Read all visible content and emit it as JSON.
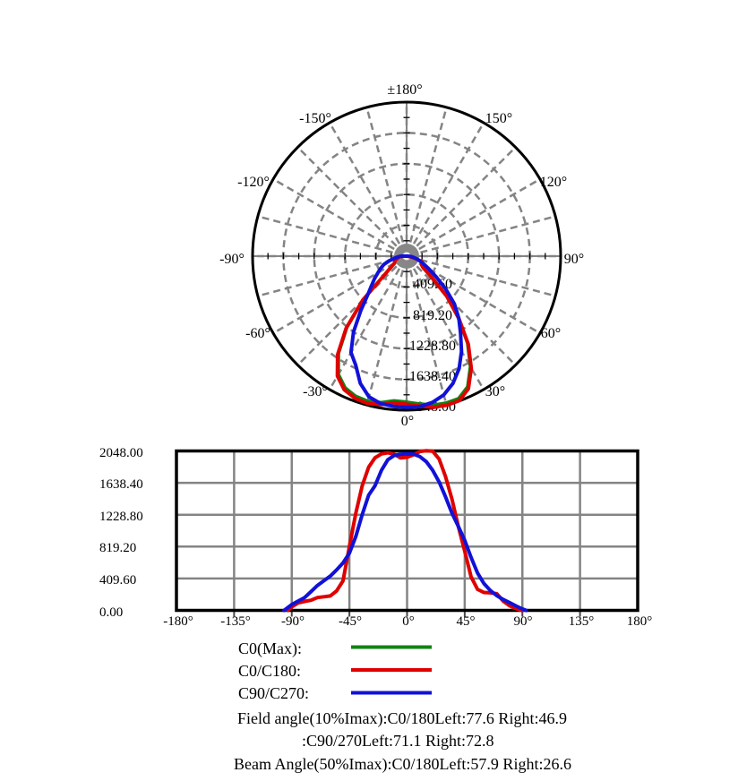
{
  "legend": {
    "items": [
      {
        "label": "C0(Max):",
        "color": "#128212"
      },
      {
        "label": "C0/C180:",
        "color": "#e00000"
      },
      {
        "label": "C90/C270:",
        "color": "#1111d8"
      }
    ]
  },
  "notes": {
    "field_angle_line1": "Field angle(10%Imax):C0/180Left:77.6 Right:46.9",
    "field_angle_line2": ":C90/270Left:71.1 Right:72.8",
    "beam_angle_line": "Beam Angle(50%Imax):C0/180Left:57.9 Right:26.6"
  },
  "chart_data": [
    {
      "type": "polar",
      "title": "",
      "rmax": 2048,
      "angle_range": [
        -180,
        180
      ],
      "grid": "dashed, rings every 409.6, spokes every 15 deg, 0 deg at bottom",
      "angle_tick_labels": [
        "±180°",
        "-150°",
        "150°",
        "-120°",
        "120°",
        "-90°",
        "90°",
        "-60°",
        "60°",
        "-30°",
        "30°",
        "0°"
      ],
      "r_tick_labels": [
        "409.60",
        "819.20",
        "1228.80",
        "1638.40",
        "2048.00"
      ],
      "series": [
        {
          "name": "C0(Max)",
          "color": "#128212",
          "angles": [
            -93,
            -90,
            -85,
            -80,
            -75,
            -70,
            -65,
            -60,
            -55,
            -50,
            -45,
            -40,
            -35,
            -30,
            -25,
            -20,
            -15,
            -10,
            -5,
            0,
            5,
            10,
            15,
            20,
            25,
            30,
            35,
            40,
            45,
            50,
            55,
            60,
            65,
            70,
            75,
            80,
            85,
            88,
            90
          ],
          "values": [
            0,
            44,
            94,
            113,
            128,
            163,
            172,
            182,
            246,
            374,
            808,
            1231,
            1576,
            1812,
            1931,
            1980,
            1995,
            1975,
            1929,
            1938,
            1970,
            2009,
            2021,
            2014,
            1916,
            1694,
            1409,
            1064,
            749,
            424,
            266,
            227,
            222,
            212,
            118,
            59,
            22,
            6,
            0
          ]
        },
        {
          "name": "C0/C180",
          "color": "#e00000",
          "angles": [
            -93,
            -90,
            -85,
            -80,
            -75,
            -70,
            -65,
            -60,
            -55,
            -50,
            -45,
            -40,
            -35,
            -30,
            -25,
            -20,
            -15,
            -10,
            -5,
            0,
            5,
            10,
            15,
            20,
            25,
            30,
            35,
            40,
            45,
            50,
            55,
            60,
            65,
            70,
            75,
            80,
            85,
            88,
            90
          ],
          "values": [
            0,
            45,
            95,
            115,
            130,
            165,
            175,
            185,
            250,
            380,
            820,
            1250,
            1600,
            1840,
            1960,
            2010,
            2025,
            2005,
            1958,
            1968,
            2000,
            2040,
            2052,
            2045,
            1945,
            1720,
            1430,
            1080,
            760,
            430,
            270,
            230,
            225,
            215,
            120,
            60,
            22,
            6,
            0
          ]
        },
        {
          "name": "C90/C270",
          "color": "#1111d8",
          "angles": [
            -96,
            -90,
            -85,
            -80,
            -75,
            -70,
            -65,
            -60,
            -55,
            -50,
            -45,
            -40,
            -35,
            -30,
            -25,
            -20,
            -15,
            -10,
            -5,
            0,
            5,
            10,
            15,
            20,
            25,
            30,
            35,
            40,
            45,
            50,
            55,
            60,
            65,
            70,
            75,
            80,
            85,
            90,
            93
          ],
          "values": [
            0,
            75,
            120,
            165,
            240,
            320,
            380,
            440,
            520,
            610,
            735,
            950,
            1230,
            1480,
            1600,
            1800,
            1935,
            1990,
            2005,
            2010,
            2008,
            1975,
            1910,
            1800,
            1650,
            1460,
            1250,
            1080,
            900,
            680,
            480,
            345,
            255,
            190,
            140,
            100,
            58,
            18,
            0
          ]
        }
      ]
    },
    {
      "type": "line",
      "title": "",
      "xlim": [
        -180,
        180
      ],
      "ylim": [
        0,
        2048
      ],
      "grid": "solid gray, x every 45 deg, y every 409.6",
      "x_tick_labels": [
        "-180°",
        "-135°",
        "-90°",
        "-45°",
        "0°",
        "45°",
        "90°",
        "135°",
        "180°"
      ],
      "y_tick_labels": [
        "0.00",
        "409.60",
        "819.20",
        "1228.80",
        "1638.40",
        "2048.00"
      ],
      "series": [
        {
          "name": "C0(Max)",
          "color": "#128212",
          "x": [
            -93,
            -90,
            -85,
            -80,
            -75,
            -70,
            -65,
            -60,
            -55,
            -50,
            -45,
            -40,
            -35,
            -30,
            -25,
            -20,
            -15,
            -10,
            -5,
            0,
            5,
            10,
            15,
            20,
            25,
            30,
            35,
            40,
            45,
            50,
            55,
            60,
            65,
            70,
            75,
            80,
            85,
            88,
            90
          ],
          "y": [
            0,
            45,
            95,
            115,
            130,
            165,
            175,
            185,
            250,
            380,
            820,
            1250,
            1600,
            1840,
            1960,
            2010,
            2025,
            2005,
            1958,
            1968,
            2000,
            2040,
            2052,
            2045,
            1945,
            1720,
            1430,
            1080,
            760,
            430,
            270,
            230,
            225,
            215,
            120,
            60,
            22,
            6,
            0
          ]
        },
        {
          "name": "C0/C180",
          "color": "#e00000",
          "x": [
            -93,
            -90,
            -85,
            -80,
            -75,
            -70,
            -65,
            -60,
            -55,
            -50,
            -45,
            -40,
            -35,
            -30,
            -25,
            -20,
            -15,
            -10,
            -5,
            0,
            5,
            10,
            15,
            20,
            25,
            30,
            35,
            40,
            45,
            50,
            55,
            60,
            65,
            70,
            75,
            80,
            85,
            88,
            90
          ],
          "y": [
            0,
            45,
            95,
            115,
            130,
            165,
            175,
            185,
            250,
            380,
            820,
            1250,
            1600,
            1840,
            1960,
            2010,
            2025,
            2005,
            1958,
            1968,
            2000,
            2040,
            2052,
            2045,
            1945,
            1720,
            1430,
            1080,
            760,
            430,
            270,
            230,
            225,
            215,
            120,
            60,
            22,
            6,
            0
          ]
        },
        {
          "name": "C90/C270",
          "color": "#1111d8",
          "x": [
            -96,
            -90,
            -85,
            -80,
            -75,
            -70,
            -65,
            -60,
            -55,
            -50,
            -45,
            -40,
            -35,
            -30,
            -25,
            -20,
            -15,
            -10,
            -5,
            0,
            5,
            10,
            15,
            20,
            25,
            30,
            35,
            40,
            45,
            50,
            55,
            60,
            65,
            70,
            75,
            80,
            85,
            90,
            93
          ],
          "y": [
            0,
            75,
            120,
            165,
            240,
            320,
            380,
            440,
            520,
            610,
            735,
            950,
            1230,
            1480,
            1600,
            1800,
            1935,
            1990,
            2005,
            2010,
            2008,
            1975,
            1910,
            1800,
            1650,
            1460,
            1250,
            1080,
            900,
            680,
            480,
            345,
            255,
            190,
            140,
            100,
            58,
            18,
            0
          ]
        }
      ]
    }
  ]
}
